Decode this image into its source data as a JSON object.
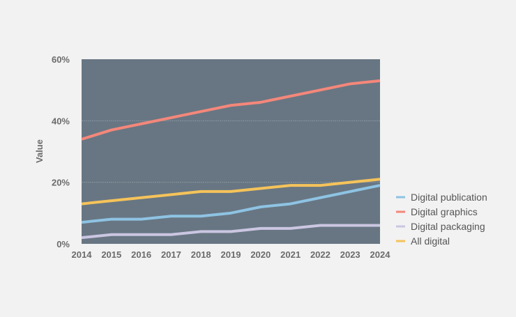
{
  "chart_data": {
    "type": "line",
    "title": "",
    "xlabel": "",
    "ylabel": "Value",
    "ylim": [
      0,
      60
    ],
    "yticks": [
      "0%",
      "20%",
      "40%",
      "60%"
    ],
    "ytick_values": [
      0,
      20,
      40,
      60
    ],
    "x": [
      "2014",
      "2015",
      "2016",
      "2017",
      "2018",
      "2019",
      "2020",
      "2021",
      "2022",
      "2023",
      "2024"
    ],
    "grid": true,
    "legend_position": "right",
    "series": [
      {
        "name": "Digital publication",
        "color": "#8ec3e3",
        "values": [
          7,
          8,
          8,
          9,
          9,
          10,
          12,
          13,
          15,
          17,
          19
        ]
      },
      {
        "name": "Digital graphics",
        "color": "#f4877a",
        "values": [
          34,
          37,
          39,
          41,
          43,
          45,
          46,
          48,
          50,
          52,
          53
        ]
      },
      {
        "name": "Digital packaging",
        "color": "#cbc6e2",
        "values": [
          2,
          3,
          3,
          3,
          4,
          4,
          5,
          5,
          6,
          6,
          6
        ]
      },
      {
        "name": "All digital",
        "color": "#f5c35a",
        "values": [
          13,
          14,
          15,
          16,
          17,
          17,
          18,
          19,
          19,
          20,
          21
        ]
      }
    ],
    "plot_background": "#687683"
  }
}
